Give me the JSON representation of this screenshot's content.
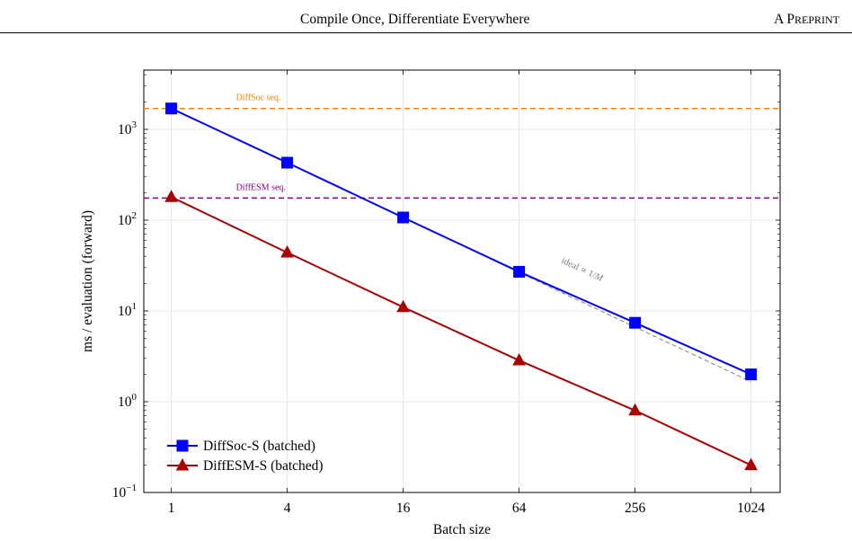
{
  "running_head": {
    "title": "Compile Once, Differentiate Everywhere",
    "right_lead": "A P",
    "right_rest": "REPRINT"
  },
  "chart_data": {
    "type": "line",
    "x_scale": "log2",
    "y_scale": "log10",
    "xlabel": "Batch size",
    "ylabel": "ms / evaluation (forward)",
    "x_ticks": [
      1,
      4,
      16,
      64,
      256,
      1024
    ],
    "y_ticks": [
      {
        "base": "10",
        "exp": "−1",
        "value": 0.1
      },
      {
        "base": "10",
        "exp": "0",
        "value": 1
      },
      {
        "base": "10",
        "exp": "1",
        "value": 10
      },
      {
        "base": "10",
        "exp": "2",
        "value": 100
      },
      {
        "base": "10",
        "exp": "3",
        "value": 1000
      }
    ],
    "xlim": [
      0.72,
      1450
    ],
    "ylim": [
      0.1,
      4500
    ],
    "grid": true,
    "legend_position": "bottom-left",
    "x": [
      1,
      4,
      16,
      64,
      256,
      1024
    ],
    "series": [
      {
        "name": "DiffSoc-S (batched)",
        "color": "#0000ff",
        "marker": "square",
        "values": [
          1700,
          430,
          107,
          27,
          7.4,
          2.0
        ]
      },
      {
        "name": "DiffESM-S (batched)",
        "color": "#aa0000",
        "marker": "triangle",
        "values": [
          180,
          44,
          11,
          2.85,
          0.8,
          0.2
        ]
      }
    ],
    "reference_lines": [
      {
        "label": "DiffSoc seq.",
        "value": 1700,
        "color": "#ff8000"
      },
      {
        "label": "DiffESM seq.",
        "value": 175,
        "color": "#8b008b"
      }
    ],
    "ideal_line": {
      "label_prefix": "ideal ∝ 1/",
      "label_var": "M",
      "color": "#7f7f7f",
      "start": [
        1,
        1700
      ],
      "end": [
        1024,
        1.66
      ]
    }
  }
}
